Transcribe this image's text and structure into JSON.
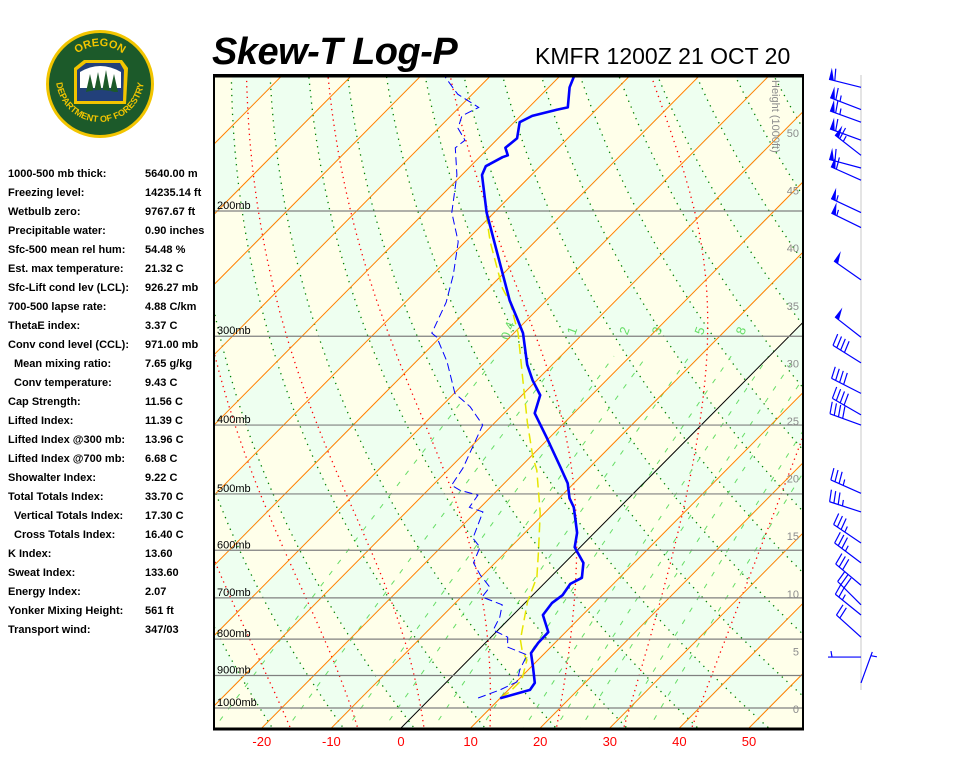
{
  "logo": {
    "top_text": "OREGON",
    "bottom_text": "DEPARTMENT OF FORESTRY"
  },
  "title": "Skew-T Log-P",
  "station": "KMFR 1200Z 21 OCT 20",
  "indices": [
    {
      "label": "1000-500 mb thick:",
      "value": "5640.00 m",
      "indent": false
    },
    {
      "label": "Freezing level:",
      "value": "14235.14 ft",
      "indent": false
    },
    {
      "label": "Wetbulb zero:",
      "value": "9767.67 ft",
      "indent": false
    },
    {
      "label": "Precipitable water:",
      "value": "0.90 inches",
      "indent": false
    },
    {
      "label": "Sfc-500 mean rel hum:",
      "value": "54.48 %",
      "indent": false
    },
    {
      "label": "Est. max temperature:",
      "value": "21.32 C",
      "indent": false
    },
    {
      "label": "Sfc-Lift cond lev (LCL):",
      "value": "926.27 mb",
      "indent": false
    },
    {
      "label": "700-500 lapse rate:",
      "value": "4.88 C/km",
      "indent": false
    },
    {
      "label": "ThetaE index:",
      "value": "3.37 C",
      "indent": false
    },
    {
      "label": "Conv cond level (CCL):",
      "value": "971.00 mb",
      "indent": false
    },
    {
      "label": "Mean mixing ratio:",
      "value": "7.65 g/kg",
      "indent": true
    },
    {
      "label": "Conv temperature:",
      "value": "9.43 C",
      "indent": true
    },
    {
      "label": "Cap Strength:",
      "value": "11.56 C",
      "indent": false
    },
    {
      "label": "Lifted Index:",
      "value": "11.39 C",
      "indent": false
    },
    {
      "label": "Lifted Index @300 mb:",
      "value": "13.96 C",
      "indent": false
    },
    {
      "label": "Lifted Index @700 mb:",
      "value": "6.68 C",
      "indent": false
    },
    {
      "label": "Showalter Index:",
      "value": "9.22 C",
      "indent": false
    },
    {
      "label": "Total Totals Index:",
      "value": "33.70 C",
      "indent": false
    },
    {
      "label": "Vertical Totals Index:",
      "value": "17.30 C",
      "indent": true
    },
    {
      "label": "Cross Totals Index:",
      "value": "16.40 C",
      "indent": true
    },
    {
      "label": "K Index:",
      "value": "13.60",
      "indent": false
    },
    {
      "label": "Sweat Index:",
      "value": "133.60",
      "indent": false
    },
    {
      "label": "Energy Index:",
      "value": "2.07",
      "indent": false
    },
    {
      "label": "Yonker Mixing Height:",
      "value": "561 ft",
      "indent": false
    },
    {
      "label": "Transport wind:",
      "value": "347/03",
      "indent": false
    }
  ],
  "chart_data": {
    "type": "skew-t log-p",
    "x_unit": "C",
    "x_ticks": [
      -20,
      -10,
      0,
      10,
      20,
      30,
      40,
      50
    ],
    "x_tick_labels": [
      "-20",
      "-10",
      "0",
      "10",
      "20",
      "30",
      "40",
      "50"
    ],
    "pressure_levels": [
      200,
      300,
      400,
      500,
      600,
      700,
      800,
      900,
      1000
    ],
    "pressure_labels": [
      "200mb",
      "300mb",
      "400mb",
      "500mb",
      "600mb",
      "700mb",
      "800mb",
      "900mb",
      "1000mb"
    ],
    "pressure_range_mb": [
      1063,
      129
    ],
    "height_axis_label": "Height (1000ft)",
    "height_ticks": [
      "0",
      "5",
      "10",
      "15",
      "20",
      "25",
      "30",
      "35",
      "40",
      "45",
      "50"
    ],
    "isotherm_step_c": 10,
    "dry_adiabat_step_k": 10,
    "moist_adiabats_c": [
      -20,
      -10,
      0,
      10,
      20,
      30,
      40
    ],
    "mixing_ratio_lines_gkg": [
      0.4,
      1,
      2,
      3,
      5,
      8,
      12,
      16,
      20,
      28,
      36
    ],
    "mixing_ratio_labels": [
      "0.4",
      "1",
      "2",
      "3",
      "5",
      "8"
    ],
    "colors": {
      "temperature": "#0000ff",
      "dewpoint": "#0000ff",
      "parcel": "#e6e600",
      "isotherm": "#ff8000",
      "zero_isotherm": "#000000",
      "dry_adiabat": "#008000",
      "moist_adiabat": "#ff0000",
      "mixing_ratio": "#66dd66",
      "band_yellow": "#ffffea",
      "band_green": "#eefff0",
      "axis_labels": "#ff0000",
      "wind_barb": "#0000ff"
    },
    "temperature": [
      [
        969,
        10.0
      ],
      [
        943,
        13.1
      ],
      [
        922,
        12.8
      ],
      [
        876,
        10.3
      ],
      [
        837,
        8.0
      ],
      [
        810,
        7.6
      ],
      [
        782,
        7.5
      ],
      [
        740,
        4.3
      ],
      [
        712,
        3.9
      ],
      [
        694,
        4.3
      ],
      [
        669,
        3.8
      ],
      [
        656,
        4.6
      ],
      [
        625,
        2.7
      ],
      [
        594,
        -0.8
      ],
      [
        567,
        -2.5
      ],
      [
        522,
        -6.6
      ],
      [
        507,
        -8.5
      ],
      [
        483,
        -10.9
      ],
      [
        458,
        -14.3
      ],
      [
        416,
        -20.5
      ],
      [
        385,
        -25.6
      ],
      [
        363,
        -27.4
      ],
      [
        346,
        -30.6
      ],
      [
        329,
        -33.6
      ],
      [
        297,
        -38.7
      ],
      [
        282,
        -41.9
      ],
      [
        267,
        -45.3
      ],
      [
        201,
        -61.1
      ],
      [
        178,
        -67.1
      ],
      [
        173,
        -67.8
      ],
      [
        168,
        -66.7
      ],
      [
        167,
        -66.2
      ],
      [
        163,
        -67.6
      ],
      [
        158,
        -67.3
      ],
      [
        150,
        -69.2
      ],
      [
        147,
        -68.3
      ],
      [
        144,
        -65.6
      ],
      [
        143,
        -64.4
      ],
      [
        134,
        -67.0
      ],
      [
        129,
        -68.0
      ]
    ],
    "dewpoint": [
      [
        968,
        6.8
      ],
      [
        943,
        8.8
      ],
      [
        919,
        10.1
      ],
      [
        884,
        8.8
      ],
      [
        842,
        7.7
      ],
      [
        821,
        3.8
      ],
      [
        795,
        2.4
      ],
      [
        777,
        -0.7
      ],
      [
        745,
        -1.6
      ],
      [
        716,
        -3.0
      ],
      [
        698,
        -7.0
      ],
      [
        676,
        -7.3
      ],
      [
        650,
        -10.4
      ],
      [
        625,
        -13.1
      ],
      [
        594,
        -14.4
      ],
      [
        577,
        -16.7
      ],
      [
        530,
        -19.0
      ],
      [
        522,
        -21.6
      ],
      [
        502,
        -22.1
      ],
      [
        494,
        -25.4
      ],
      [
        486,
        -27.3
      ],
      [
        460,
        -28.1
      ],
      [
        400,
        -31.4
      ],
      [
        377,
        -35.8
      ],
      [
        361,
        -39.9
      ],
      [
        326,
        -45.5
      ],
      [
        301,
        -50.5
      ],
      [
        297,
        -51.8
      ],
      [
        269,
        -54.1
      ],
      [
        246,
        -57.0
      ],
      [
        221,
        -61.0
      ],
      [
        201,
        -66.1
      ],
      [
        178,
        -70.7
      ],
      [
        163,
        -74.8
      ],
      [
        159,
        -74.5
      ],
      [
        153,
        -77.2
      ],
      [
        147,
        -78.4
      ],
      [
        143,
        -77.2
      ],
      [
        137,
        -82.1
      ],
      [
        129,
        -86.7
      ]
    ],
    "parcel": [
      [
        968,
        10.0
      ],
      [
        949,
        10.5
      ],
      [
        913,
        10.5
      ],
      [
        856,
        8.4
      ],
      [
        829,
        6.3
      ],
      [
        802,
        4.6
      ],
      [
        769,
        3.1
      ],
      [
        709,
        0.2
      ],
      [
        654,
        -2.0
      ],
      [
        605,
        -5.2
      ],
      [
        532,
        -10.6
      ],
      [
        463,
        -17.2
      ],
      [
        444,
        -19.6
      ],
      [
        397,
        -25.3
      ],
      [
        346,
        -32.0
      ],
      [
        297,
        -39.4
      ],
      [
        269,
        -44.9
      ],
      [
        257,
        -48.0
      ],
      [
        221,
        -56.4
      ],
      [
        203,
        -60.7
      ]
    ],
    "winds": [
      {
        "p": 134,
        "dir": 284,
        "kt": 60
      },
      {
        "p": 144,
        "dir": 291,
        "kt": 65
      },
      {
        "p": 150,
        "dir": 290,
        "kt": 65
      },
      {
        "p": 159,
        "dir": 290,
        "kt": 60
      },
      {
        "p": 167,
        "dir": 308,
        "kt": 65
      },
      {
        "p": 174,
        "dir": 285,
        "kt": 60
      },
      {
        "p": 181,
        "dir": 294,
        "kt": 60
      },
      {
        "p": 201,
        "dir": 295,
        "kt": 55
      },
      {
        "p": 211,
        "dir": 296,
        "kt": 55
      },
      {
        "p": 250,
        "dir": 305,
        "kt": 50
      },
      {
        "p": 301,
        "dir": 308,
        "kt": 50
      },
      {
        "p": 327,
        "dir": 302,
        "kt": 40
      },
      {
        "p": 361,
        "dir": 297,
        "kt": 40
      },
      {
        "p": 387,
        "dir": 300,
        "kt": 40
      },
      {
        "p": 400,
        "dir": 290,
        "kt": 40
      },
      {
        "p": 499,
        "dir": 294,
        "kt": 35
      },
      {
        "p": 530,
        "dir": 288,
        "kt": 35
      },
      {
        "p": 586,
        "dir": 304,
        "kt": 35
      },
      {
        "p": 625,
        "dir": 307,
        "kt": 35
      },
      {
        "p": 672,
        "dir": 310,
        "kt": 30
      },
      {
        "p": 716,
        "dir": 315,
        "kt": 30
      },
      {
        "p": 740,
        "dir": 309,
        "kt": 25
      },
      {
        "p": 795,
        "dir": 312,
        "kt": 20
      },
      {
        "p": 848,
        "dir": 270,
        "kt": 5
      },
      {
        "p": 922,
        "dir": 20,
        "kt": 5
      }
    ]
  }
}
